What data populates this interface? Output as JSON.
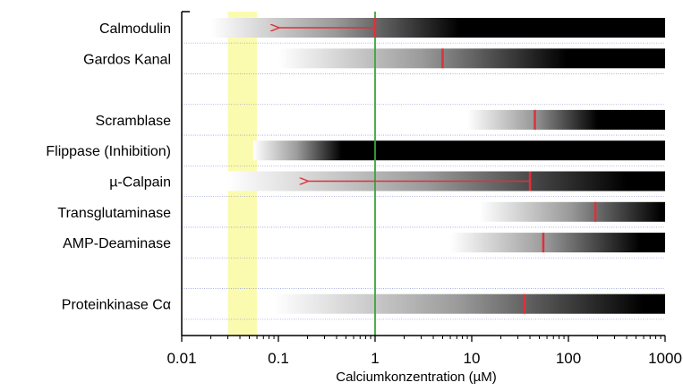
{
  "chart_data": {
    "type": "bar",
    "xlabel": "Calciumkonzentration (µM)",
    "x_scale": "log",
    "xlim": [
      0.01,
      1000
    ],
    "x_ticks": [
      "0.01",
      "0.1",
      "1",
      "10",
      "100",
      "1000"
    ],
    "reference_line_x": 1,
    "highlight_band_x": [
      0.03,
      0.06
    ],
    "colors": {
      "marker": "#e0303a",
      "reference_line": "#3aa53a",
      "band": "#fbfbb0",
      "bar": "#000000",
      "row_divider": "#9aa3d6"
    },
    "categories": [
      "Calmodulin",
      "Gardos Kanal",
      "",
      "Scramblase",
      "Flippase (Inhibition)",
      "µ-Calpain",
      "Transglutaminase",
      "AMP-Deaminase",
      "",
      "Proteinkinase Cα"
    ],
    "rows": [
      {
        "label": "Calmodulin",
        "start": 0.02,
        "black_from": 7.5,
        "end": 1000,
        "marker": 1,
        "arrow_to": 0.1
      },
      {
        "label": "Gardos Kanal",
        "start": 0.1,
        "black_from": 95,
        "end": 1000,
        "marker": 5,
        "arrow_to": null
      },
      null,
      {
        "label": "Scramblase",
        "start": 9,
        "black_from": 200,
        "end": 1000,
        "marker": 45,
        "arrow_to": null
      },
      {
        "label": "Flippase (Inhibition)",
        "start": 0.055,
        "black_from": 0.45,
        "end": 1000,
        "marker": null,
        "arrow_to": null
      },
      {
        "label": "µ-Calpain",
        "start": 0.03,
        "black_from": 400,
        "end": 1000,
        "marker": 40,
        "arrow_to": 0.2
      },
      {
        "label": "Transglutaminase",
        "start": 12,
        "black_from": 900,
        "end": 1000,
        "marker": 190,
        "arrow_to": null
      },
      {
        "label": "AMP-Deaminase",
        "start": 6,
        "black_from": 550,
        "end": 1000,
        "marker": 55,
        "arrow_to": null
      },
      null,
      {
        "label": "Proteinkinase Cα",
        "start": 0.09,
        "black_from": 600,
        "end": 1000,
        "marker": 35,
        "arrow_to": null
      }
    ]
  }
}
